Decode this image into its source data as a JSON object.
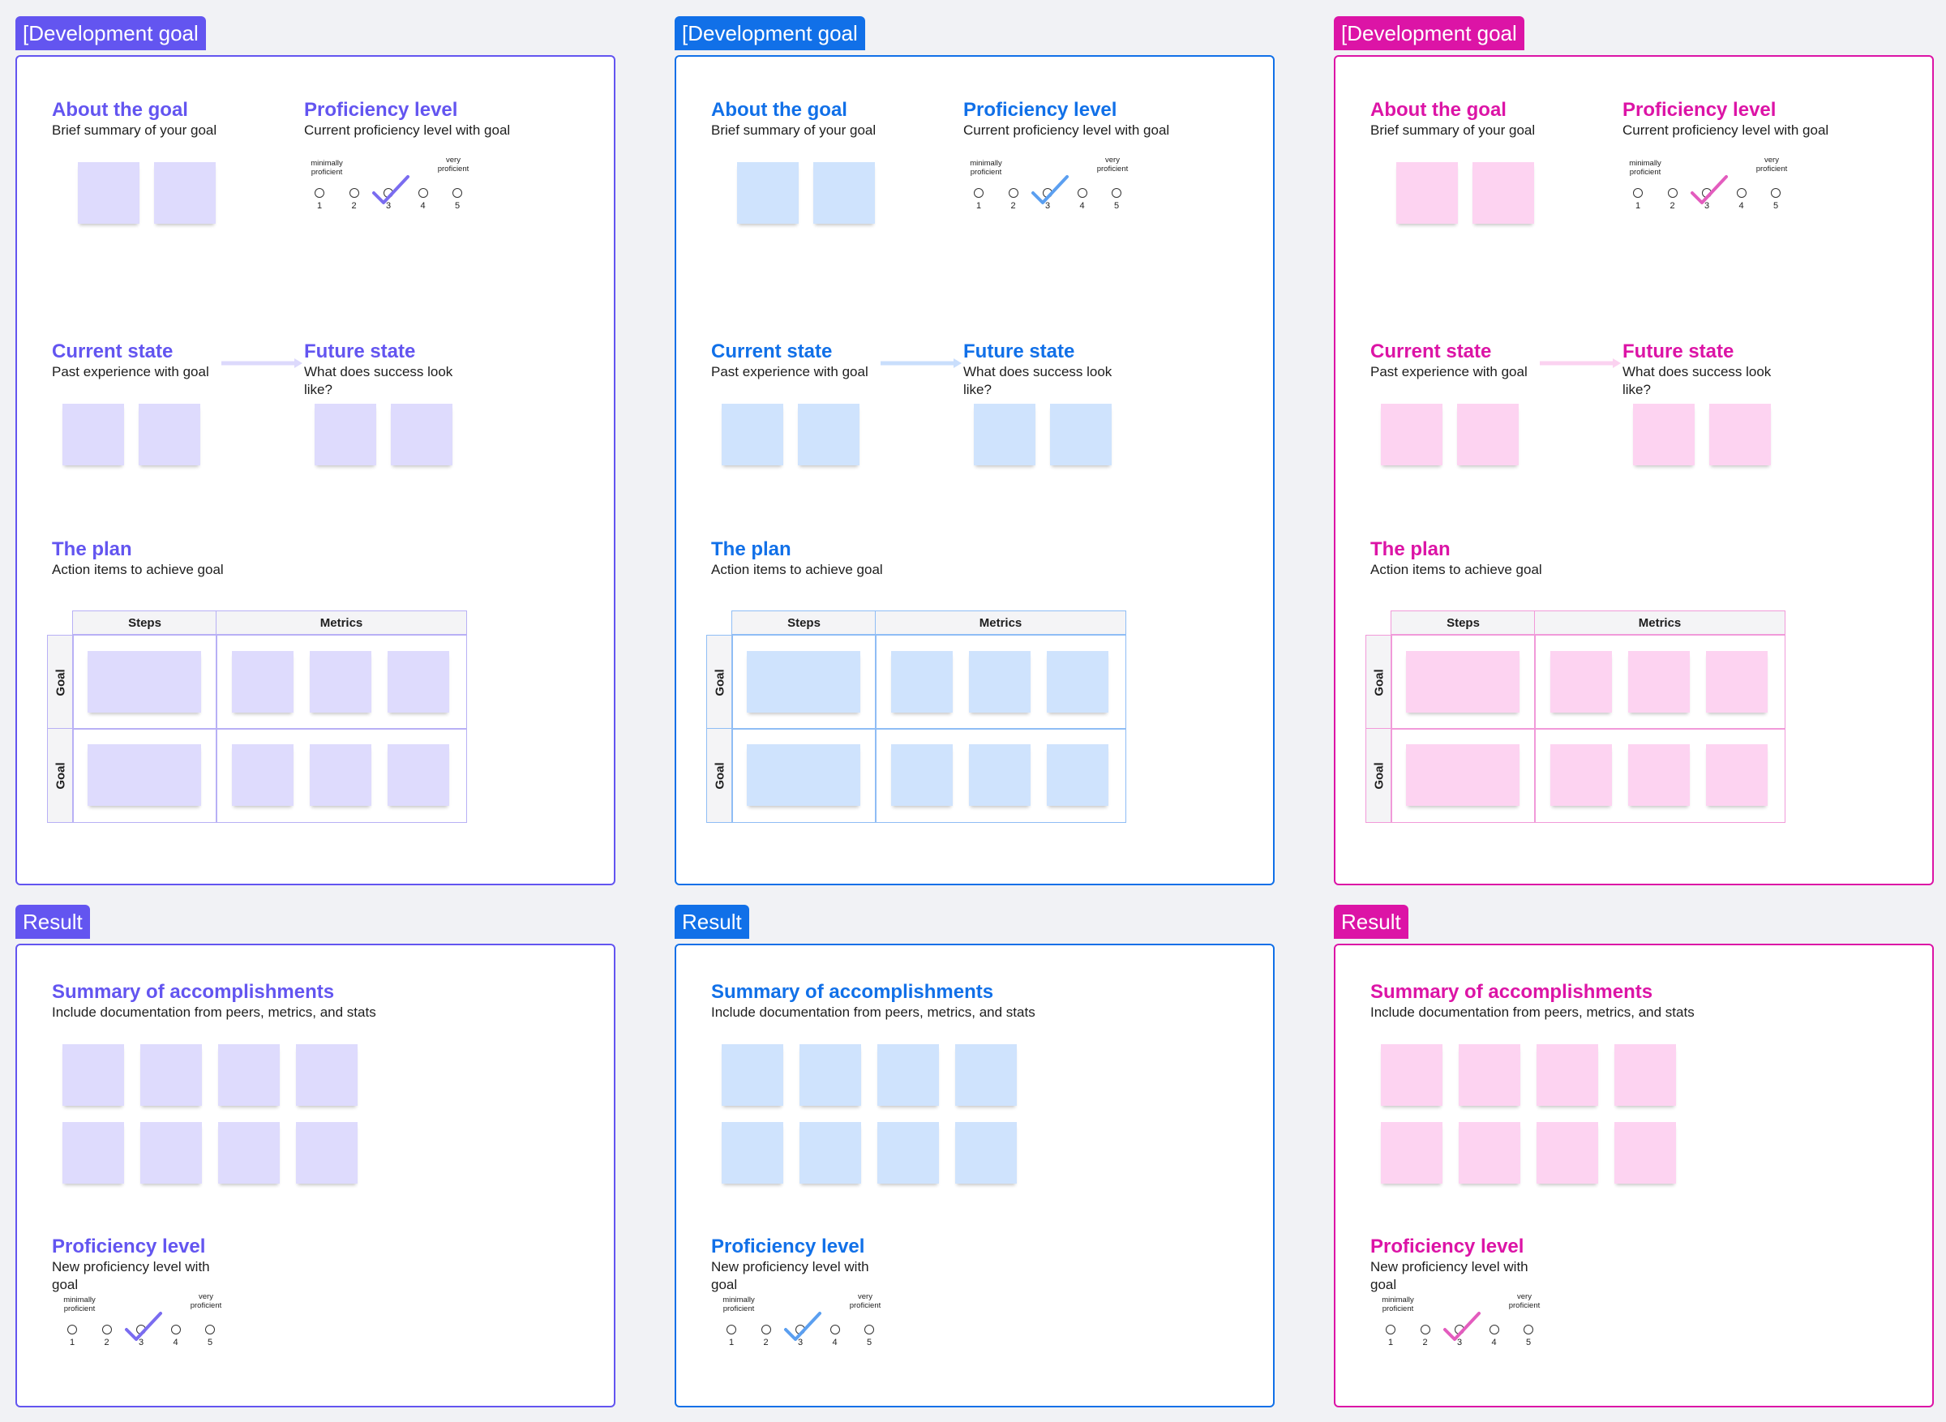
{
  "columns": [
    {
      "accent": "#6355f0",
      "sticky": "#dedbfd",
      "arrow": "#dcd9fc",
      "table": "#b8b0f5",
      "check": "#7a6cf0"
    },
    {
      "accent": "#1170e8",
      "sticky": "#cfe3fd",
      "arrow": "#c9defc",
      "table": "#8fbdf5",
      "check": "#5b9ff0"
    },
    {
      "accent": "#dc14a6",
      "sticky": "#fdd3f1",
      "arrow": "#fbd2f0",
      "table": "#f19ad9",
      "check": "#e35cbe"
    }
  ],
  "dev": {
    "label": "[Development goal",
    "about": {
      "title": "About the goal",
      "sub": "Brief summary of your goal"
    },
    "proficiency": {
      "title": "Proficiency level",
      "sub": "Current proficiency level with goal"
    },
    "current": {
      "title": "Current state",
      "sub": "Past experience with goal"
    },
    "future": {
      "title": "Future state",
      "sub": "What does success look like?"
    },
    "plan": {
      "title": "The plan",
      "sub": "Action items to achieve goal",
      "header_steps": "Steps",
      "header_metrics": "Metrics",
      "row1": "Goal",
      "row2": "Goal"
    }
  },
  "scale": {
    "low": "minimally proficient",
    "high": "very proficient",
    "numbers": [
      "1",
      "2",
      "3",
      "4",
      "5"
    ],
    "selected": 3
  },
  "result": {
    "label": "Result",
    "summary": {
      "title": "Summary of accomplishments",
      "sub": "Include documentation from peers, metrics, and stats"
    },
    "proficiency": {
      "title": "Proficiency level",
      "sub": "New proficiency level with goal"
    }
  }
}
